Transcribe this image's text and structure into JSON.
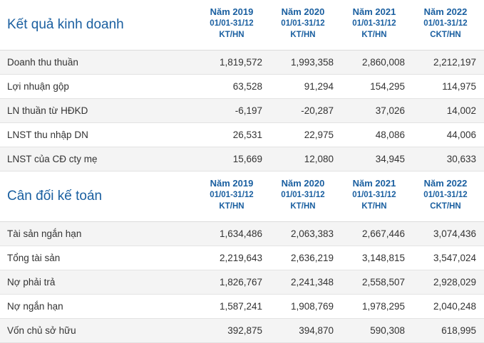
{
  "business": {
    "title": "Kết quả kinh doanh",
    "columns": [
      {
        "year": "Năm 2019",
        "period": "01/01-31/12",
        "type": "KT/HN"
      },
      {
        "year": "Năm 2020",
        "period": "01/01-31/12",
        "type": "KT/HN"
      },
      {
        "year": "Năm 2021",
        "period": "01/01-31/12",
        "type": "KT/HN"
      },
      {
        "year": "Năm 2022",
        "period": "01/01-31/12",
        "type": "CKT/HN"
      }
    ],
    "rows": [
      {
        "label": "Doanh thu thuần",
        "values": [
          "1,819,572",
          "1,993,358",
          "2,860,008",
          "2,212,197"
        ]
      },
      {
        "label": "Lợi nhuận gộp",
        "values": [
          "63,528",
          "91,294",
          "154,295",
          "114,975"
        ]
      },
      {
        "label": "LN thuần từ HĐKD",
        "values": [
          "-6,197",
          "-20,287",
          "37,026",
          "14,002"
        ]
      },
      {
        "label": "LNST thu nhập DN",
        "values": [
          "26,531",
          "22,975",
          "48,086",
          "44,006"
        ]
      },
      {
        "label": "LNST của CĐ cty mẹ",
        "values": [
          "15,669",
          "12,080",
          "34,945",
          "30,633"
        ]
      }
    ]
  },
  "balance": {
    "title": "Cân đối kế toán",
    "columns": [
      {
        "year": "Năm 2019",
        "period": "01/01-31/12",
        "type": "KT/HN"
      },
      {
        "year": "Năm 2020",
        "period": "01/01-31/12",
        "type": "KT/HN"
      },
      {
        "year": "Năm 2021",
        "period": "01/01-31/12",
        "type": "KT/HN"
      },
      {
        "year": "Năm 2022",
        "period": "01/01-31/12",
        "type": "CKT/HN"
      }
    ],
    "rows": [
      {
        "label": "Tài sản ngắn hạn",
        "values": [
          "1,634,486",
          "2,063,383",
          "2,667,446",
          "3,074,436"
        ]
      },
      {
        "label": "Tổng tài sản",
        "values": [
          "2,219,643",
          "2,636,219",
          "3,148,815",
          "3,547,024"
        ]
      },
      {
        "label": "Nợ phải trả",
        "values": [
          "1,826,767",
          "2,241,348",
          "2,558,507",
          "2,928,029"
        ]
      },
      {
        "label": "Nợ ngắn hạn",
        "values": [
          "1,587,241",
          "1,908,769",
          "1,978,295",
          "2,040,248"
        ]
      },
      {
        "label": "Vốn chủ sở hữu",
        "values": [
          "392,875",
          "394,870",
          "590,308",
          "618,995"
        ]
      }
    ]
  }
}
